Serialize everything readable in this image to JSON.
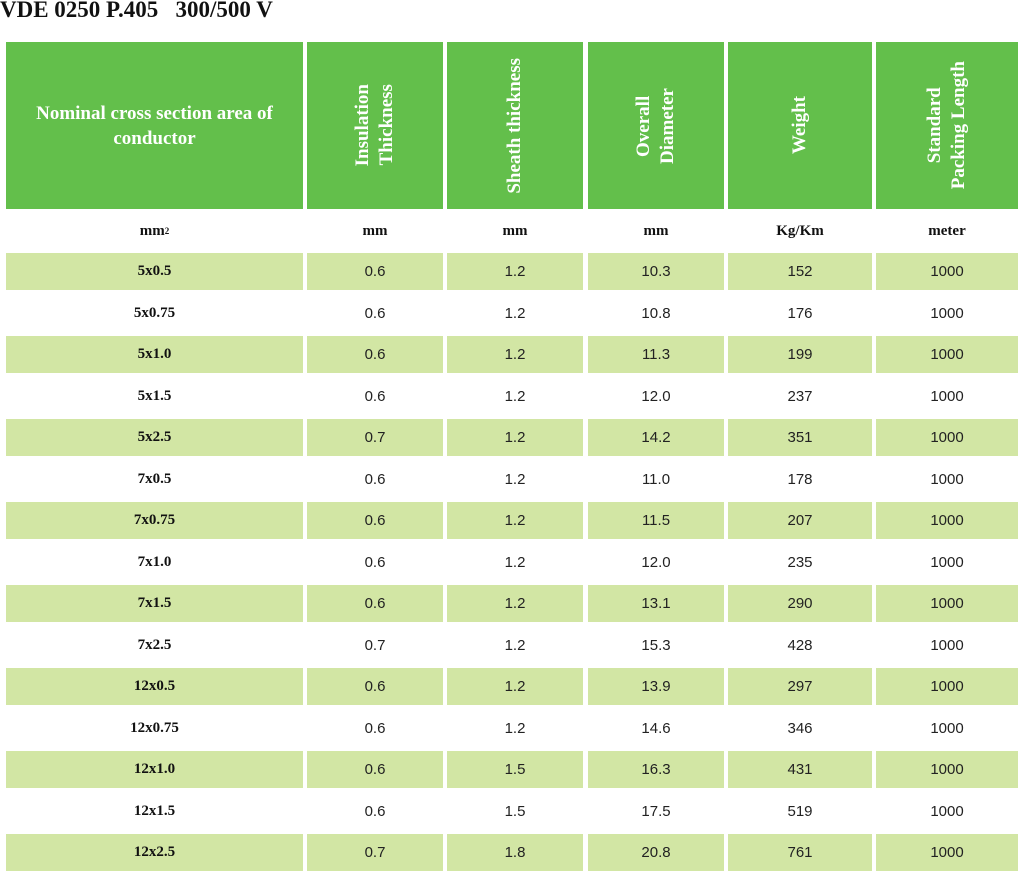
{
  "title": "VDE 0250 P.405   300/500 V",
  "headers": [
    "Nominal cross section area of conductor",
    "Insulation\nThickness",
    "Sheath thickness",
    "Overall\nDiameter",
    "Weight",
    "Standard\nPacking Length"
  ],
  "units": [
    "mm",
    "mm",
    "mm",
    "mm",
    "Kg/Km",
    "meter"
  ],
  "unit_superscript": "2",
  "rows": [
    [
      "5x0.5",
      "0.6",
      "1.2",
      "10.3",
      "152",
      "1000"
    ],
    [
      "5x0.75",
      "0.6",
      "1.2",
      "10.8",
      "176",
      "1000"
    ],
    [
      "5x1.0",
      "0.6",
      "1.2",
      "11.3",
      "199",
      "1000"
    ],
    [
      "5x1.5",
      "0.6",
      "1.2",
      "12.0",
      "237",
      "1000"
    ],
    [
      "5x2.5",
      "0.7",
      "1.2",
      "14.2",
      "351",
      "1000"
    ],
    [
      "7x0.5",
      "0.6",
      "1.2",
      "11.0",
      "178",
      "1000"
    ],
    [
      "7x0.75",
      "0.6",
      "1.2",
      "11.5",
      "207",
      "1000"
    ],
    [
      "7x1.0",
      "0.6",
      "1.2",
      "12.0",
      "235",
      "1000"
    ],
    [
      "7x1.5",
      "0.6",
      "1.2",
      "13.1",
      "290",
      "1000"
    ],
    [
      "7x2.5",
      "0.7",
      "1.2",
      "15.3",
      "428",
      "1000"
    ],
    [
      "12x0.5",
      "0.6",
      "1.2",
      "13.9",
      "297",
      "1000"
    ],
    [
      "12x0.75",
      "0.6",
      "1.2",
      "14.6",
      "346",
      "1000"
    ],
    [
      "12x1.0",
      "0.6",
      "1.5",
      "16.3",
      "431",
      "1000"
    ],
    [
      "12x1.5",
      "0.6",
      "1.5",
      "17.5",
      "519",
      "1000"
    ],
    [
      "12x2.5",
      "0.7",
      "1.8",
      "20.8",
      "761",
      "1000"
    ]
  ],
  "colors": {
    "header_bg": "#63bf4b",
    "header_text": "#ffffff",
    "stripe": "#d2e6a4"
  }
}
